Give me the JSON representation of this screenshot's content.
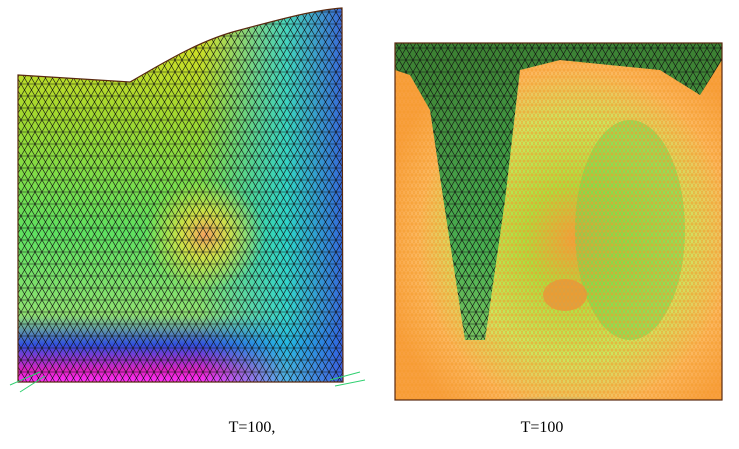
{
  "panels": [
    {
      "caption": "T=100,"
    },
    {
      "caption": "T=100"
    }
  ]
}
